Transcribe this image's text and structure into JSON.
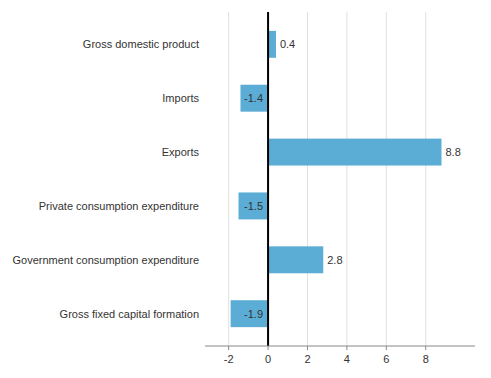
{
  "chart_data": {
    "type": "bar",
    "orientation": "horizontal",
    "categories": [
      "Gross fixed capital formation",
      "Government consumption expenditure",
      "Private consumption expenditure",
      "Exports",
      "Imports",
      "Gross domestic product"
    ],
    "values": [
      -1.9,
      2.8,
      -1.5,
      8.8,
      -1.4,
      0.4
    ],
    "color": "#5BADD6",
    "xlim": [
      -3.2,
      10.5
    ],
    "xticks": [
      -2,
      0,
      2,
      4,
      6,
      8
    ],
    "grid": true,
    "data_labels": true
  }
}
